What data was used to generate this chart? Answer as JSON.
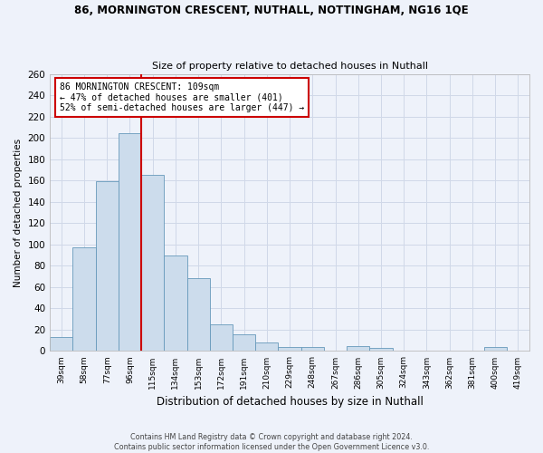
{
  "title": "86, MORNINGTON CRESCENT, NUTHALL, NOTTINGHAM, NG16 1QE",
  "subtitle": "Size of property relative to detached houses in Nuthall",
  "xlabel": "Distribution of detached houses by size in Nuthall",
  "ylabel": "Number of detached properties",
  "footer_line1": "Contains HM Land Registry data © Crown copyright and database right 2024.",
  "footer_line2": "Contains public sector information licensed under the Open Government Licence v3.0.",
  "bin_labels": [
    "39sqm",
    "58sqm",
    "77sqm",
    "96sqm",
    "115sqm",
    "134sqm",
    "153sqm",
    "172sqm",
    "191sqm",
    "210sqm",
    "229sqm",
    "248sqm",
    "267sqm",
    "286sqm",
    "305sqm",
    "324sqm",
    "343sqm",
    "362sqm",
    "381sqm",
    "400sqm",
    "419sqm"
  ],
  "bar_values": [
    13,
    97,
    159,
    204,
    165,
    90,
    68,
    25,
    16,
    8,
    4,
    4,
    0,
    5,
    3,
    0,
    0,
    0,
    0,
    4,
    0
  ],
  "bar_color": "#ccdcec",
  "bar_edge_color": "#6699bb",
  "grid_color": "#d0d8e8",
  "background_color": "#eef2fa",
  "vline_color": "#cc0000",
  "annotation_text": "86 MORNINGTON CRESCENT: 109sqm\n← 47% of detached houses are smaller (401)\n52% of semi-detached houses are larger (447) →",
  "annotation_box_color": "#ffffff",
  "annotation_box_edge": "#cc0000",
  "ylim": [
    0,
    260
  ],
  "yticks": [
    0,
    20,
    40,
    60,
    80,
    100,
    120,
    140,
    160,
    180,
    200,
    220,
    240,
    260
  ],
  "vline_pos": 3.5
}
